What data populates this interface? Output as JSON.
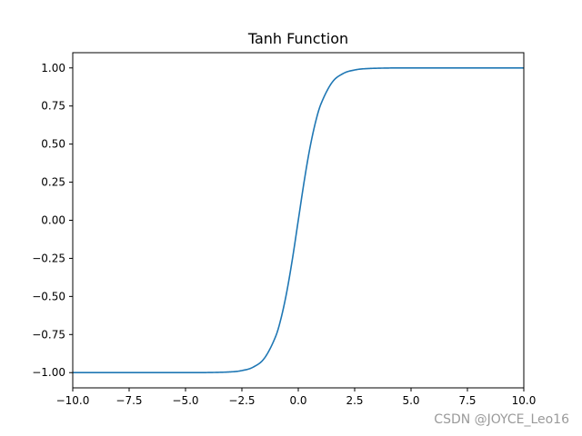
{
  "chart_data": {
    "type": "line",
    "title": "Tanh Function",
    "xlabel": "",
    "ylabel": "",
    "xlim": [
      -10,
      10
    ],
    "ylim": [
      -1.1,
      1.1
    ],
    "x_ticks": [
      -10,
      -7.5,
      -5,
      -2.5,
      0,
      2.5,
      5,
      7.5,
      10
    ],
    "x_tick_labels": [
      "−10.0",
      "−7.5",
      "−5.0",
      "−2.5",
      "0.0",
      "2.5",
      "5.0",
      "7.5",
      "10.0"
    ],
    "y_ticks": [
      -1,
      -0.75,
      -0.5,
      -0.25,
      0,
      0.25,
      0.5,
      0.75,
      1
    ],
    "y_tick_labels": [
      "−1.00",
      "−0.75",
      "−0.50",
      "−0.25",
      "0.00",
      "0.25",
      "0.50",
      "0.75",
      "1.00"
    ],
    "grid": false,
    "series": [
      {
        "color": "#1f77b4",
        "x": [
          -10,
          -5,
          -4,
          -3,
          -2.5,
          -2,
          -1.5,
          -1,
          -0.75,
          -0.5,
          -0.25,
          0,
          0.25,
          0.5,
          0.75,
          1,
          1.5,
          2,
          2.5,
          3,
          4,
          5,
          10
        ],
        "y": [
          -1.0,
          -0.9999,
          -0.9993,
          -0.9951,
          -0.9866,
          -0.964,
          -0.9051,
          -0.7616,
          -0.6351,
          -0.4621,
          -0.2449,
          0.0,
          0.2449,
          0.4621,
          0.6351,
          0.7616,
          0.9051,
          0.964,
          0.9866,
          0.9951,
          0.9993,
          0.9999,
          1.0
        ]
      }
    ]
  },
  "watermark": "CSDN @JOYCE_Leo16"
}
